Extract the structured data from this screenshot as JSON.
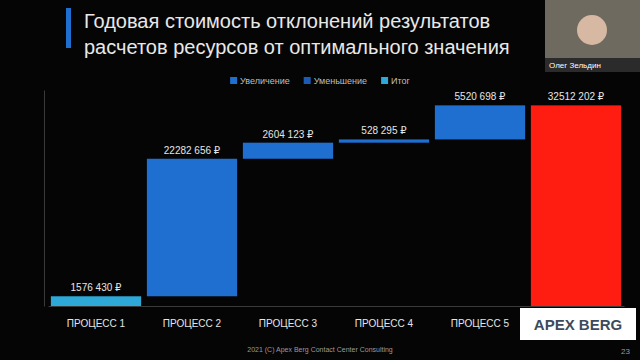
{
  "chart_data": {
    "type": "waterfall",
    "title": "Годовая стоимость отклонений результатов расчетов ресурсов от оптимального значения",
    "categories": [
      "ПРОЦЕСС 1",
      "ПРОЦЕСС 2",
      "ПРОЦЕСС 3",
      "ПРОЦЕСС 4",
      "ПРОЦЕСС 5",
      null
    ],
    "series": [
      {
        "name": "Увеличение",
        "color": "#1f6fd1",
        "values": [
          null,
          22282656,
          2604123,
          528295,
          5520698,
          null
        ]
      },
      {
        "name": "Уменьшение",
        "color": "#1b5bb5",
        "values": [
          null,
          null,
          null,
          null,
          null,
          null
        ]
      },
      {
        "name": "Итог",
        "color": "#2ea8d6",
        "values": [
          1576430,
          null,
          null,
          null,
          null,
          32512202
        ]
      }
    ],
    "colors": [
      "#2ea8d6",
      "#1f6fd1",
      "#1f6fd1",
      "#1f6fd1",
      "#1f6fd1",
      "#ff1d12"
    ],
    "value_labels": [
      "1576 430 ₽",
      "22282 656 ₽",
      "2604 123 ₽",
      "528 295 ₽",
      "5520 698 ₽",
      "32512 202 ₽"
    ],
    "data_labels": true,
    "ylim": [
      0,
      35000000
    ],
    "tick_labels": "x",
    "grid": false,
    "legend": "top"
  },
  "presenter": "Олег Зельдин",
  "logo": "APEX BERG",
  "footer": "2021 (C) Apex Berg Contact Center Consulting",
  "page_number": 23
}
